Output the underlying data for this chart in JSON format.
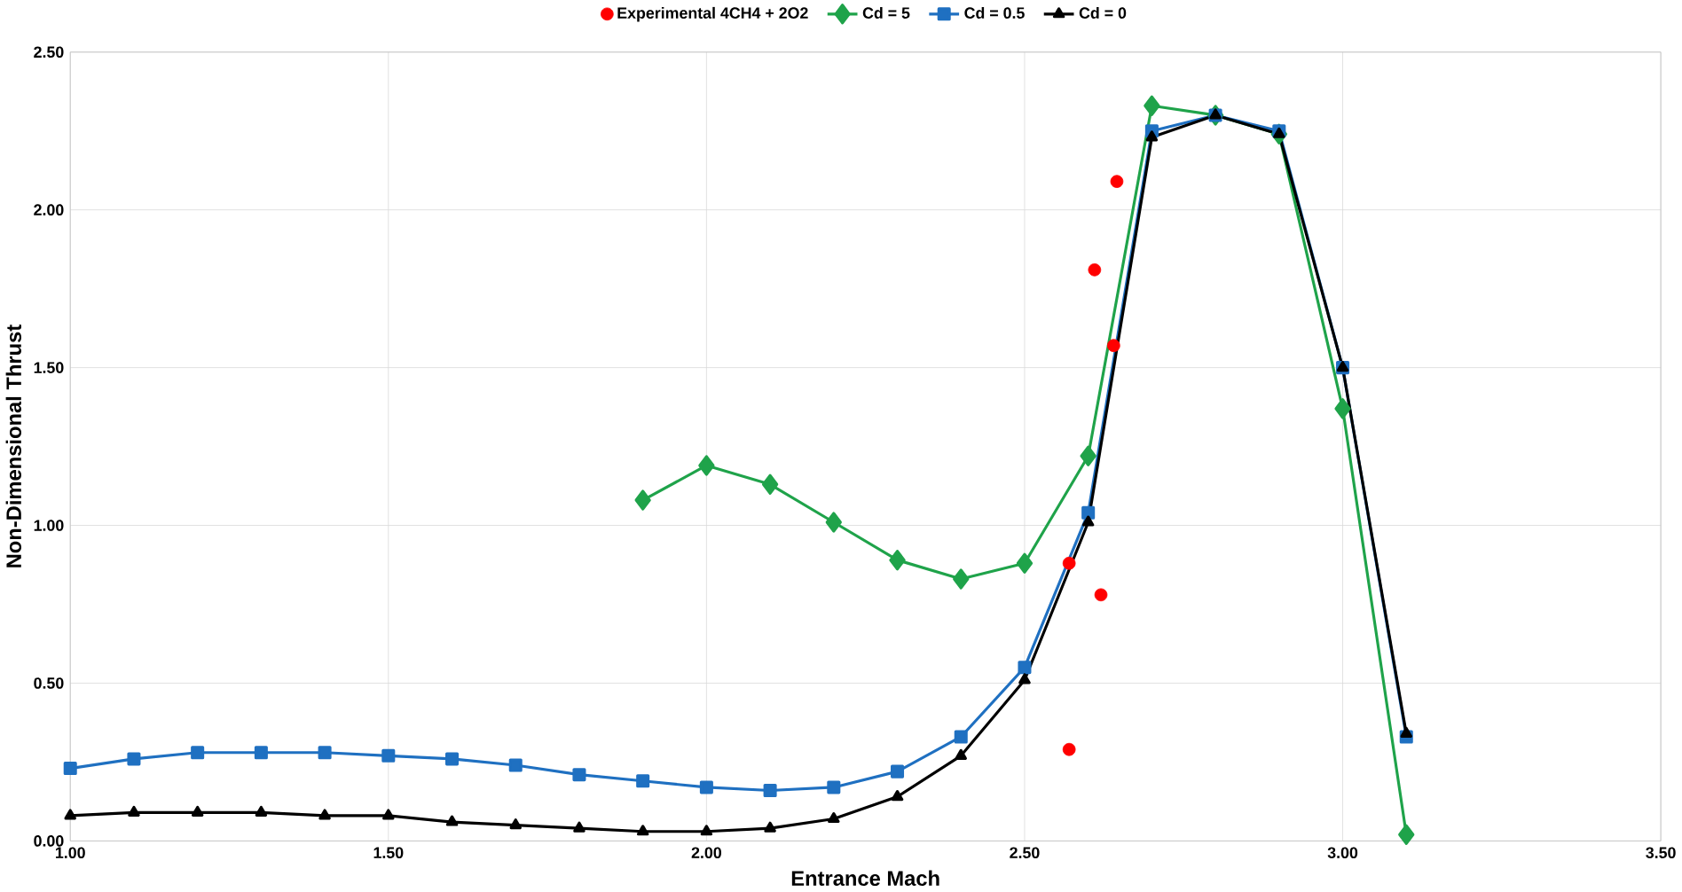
{
  "chart_data": {
    "type": "line",
    "xlabel": "Entrance Mach",
    "ylabel": "Non-Dimensional Thrust",
    "xlim": [
      1.0,
      3.5
    ],
    "ylim": [
      0,
      2.5
    ],
    "xticks": [
      {
        "value": 1.0,
        "label": "1.00"
      },
      {
        "value": 1.5,
        "label": "1.50"
      },
      {
        "value": 2.0,
        "label": "2.00"
      },
      {
        "value": 2.5,
        "label": "2.50"
      },
      {
        "value": 3.0,
        "label": "3.00"
      },
      {
        "value": 3.5,
        "label": "3.50"
      }
    ],
    "yticks": [
      {
        "value": 0,
        "label": "0.00"
      },
      {
        "value": 0.5,
        "label": "0.50"
      },
      {
        "value": 1.0,
        "label": "1.00"
      },
      {
        "value": 1.5,
        "label": "1.50"
      },
      {
        "value": 2.0,
        "label": "2.00"
      },
      {
        "value": 2.5,
        "label": "2.50"
      }
    ],
    "grid": true,
    "legend": "top",
    "line_style": "solid",
    "series": [
      {
        "name": "Experimental 4CH4 + 2O2",
        "type": "scatter",
        "marker": "circle",
        "color": "#ff0000",
        "x": [
          2.57,
          2.57,
          2.62,
          2.64,
          2.61,
          2.645
        ],
        "values": [
          0.29,
          0.88,
          0.78,
          1.57,
          1.81,
          2.09
        ]
      },
      {
        "name": "Cd = 5",
        "marker": "diamond",
        "color": "#1fa34a",
        "x": [
          1.9,
          2.0,
          2.1,
          2.2,
          2.3,
          2.4,
          2.5,
          2.6,
          2.7,
          2.8,
          2.9,
          3.0,
          3.1
        ],
        "values": [
          1.08,
          1.19,
          1.13,
          1.01,
          0.89,
          0.83,
          0.88,
          1.22,
          2.33,
          2.3,
          2.24,
          1.37,
          0.02
        ]
      },
      {
        "name": "Cd = 0.5",
        "marker": "square",
        "color": "#1f70c1",
        "x": [
          1.0,
          1.1,
          1.2,
          1.3,
          1.4,
          1.5,
          1.6,
          1.7,
          1.8,
          1.9,
          2.0,
          2.1,
          2.2,
          2.3,
          2.4,
          2.5,
          2.6,
          2.7,
          2.8,
          2.9,
          3.0,
          3.1
        ],
        "values": [
          0.23,
          0.26,
          0.28,
          0.28,
          0.28,
          0.27,
          0.26,
          0.24,
          0.21,
          0.19,
          0.17,
          0.16,
          0.17,
          0.22,
          0.33,
          0.55,
          1.04,
          2.25,
          2.3,
          2.25,
          1.5,
          0.33
        ]
      },
      {
        "name": "Cd = 0",
        "marker": "triangle",
        "color": "#000000",
        "x": [
          1.0,
          1.1,
          1.2,
          1.3,
          1.4,
          1.5,
          1.6,
          1.7,
          1.8,
          1.9,
          2.0,
          2.1,
          2.2,
          2.3,
          2.4,
          2.5,
          2.6,
          2.7,
          2.8,
          2.9,
          3.0,
          3.1
        ],
        "values": [
          0.08,
          0.09,
          0.09,
          0.09,
          0.08,
          0.08,
          0.06,
          0.05,
          0.04,
          0.03,
          0.03,
          0.04,
          0.07,
          0.14,
          0.27,
          0.51,
          1.01,
          2.23,
          2.3,
          2.24,
          1.5,
          0.34
        ]
      }
    ]
  }
}
